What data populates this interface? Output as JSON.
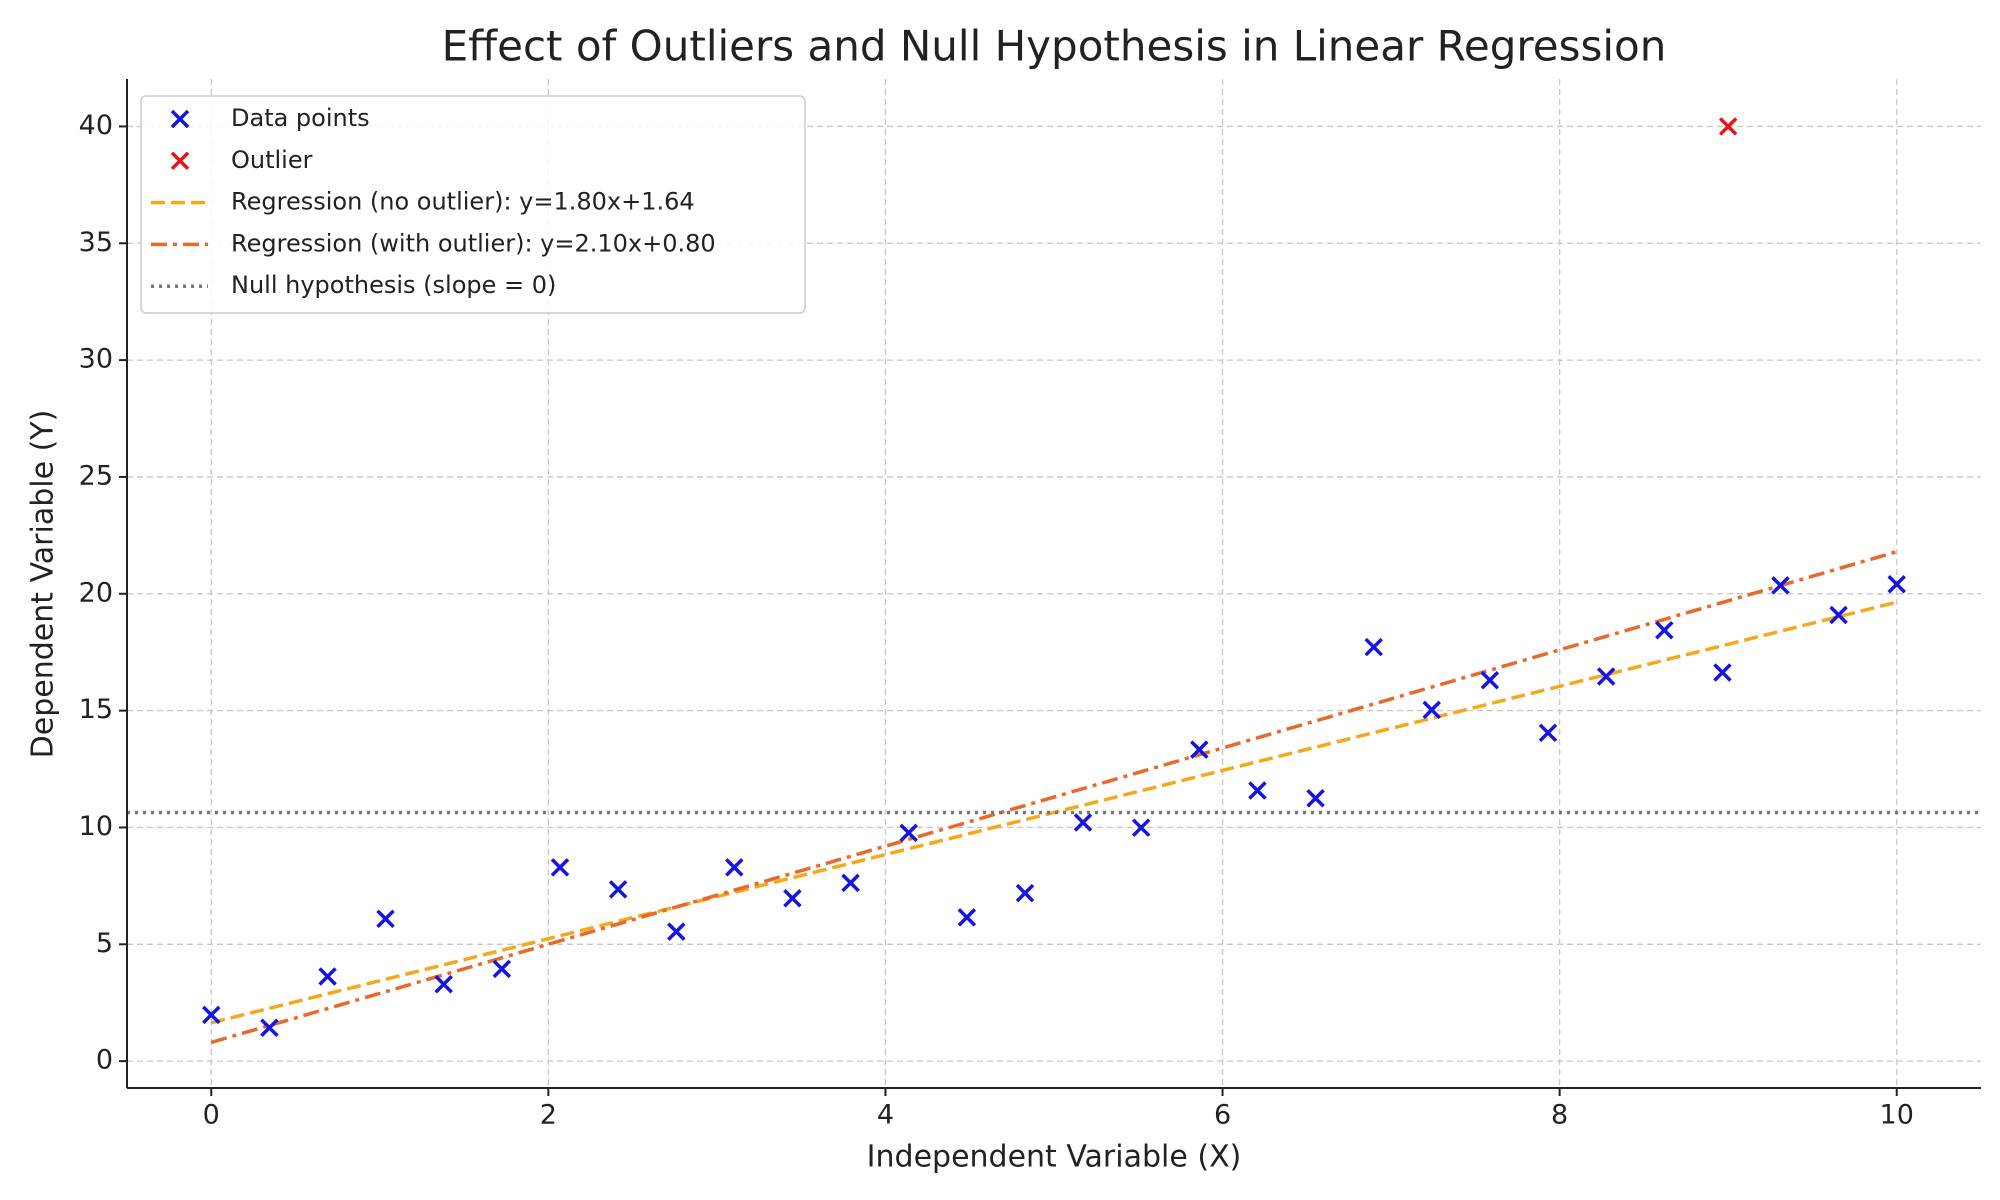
{
  "chart_data": {
    "type": "scatter",
    "title": "Effect of Outliers and Null Hypothesis in Linear Regression",
    "xlabel": "Independent Variable (X)",
    "ylabel": "Dependent Variable (Y)",
    "xlim": [
      -0.5,
      10.5
    ],
    "ylim": [
      -1.15,
      42.03
    ],
    "xticks": [
      0,
      2,
      4,
      6,
      8,
      10
    ],
    "yticks": [
      0,
      5,
      10,
      15,
      20,
      25,
      30,
      35,
      40
    ],
    "grid": true,
    "legend": "upper left",
    "series": [
      {
        "name": "Data points",
        "kind": "scatter",
        "marker": "x",
        "color": "#1414e6",
        "x": [
          0,
          0.345,
          0.69,
          1.034,
          1.379,
          1.724,
          2.069,
          2.414,
          2.759,
          3.103,
          3.448,
          3.793,
          4.138,
          4.483,
          4.828,
          5.172,
          5.517,
          5.862,
          6.207,
          6.552,
          6.897,
          7.241,
          7.586,
          7.931,
          8.276,
          8.621,
          8.966,
          9.31,
          9.655,
          10
        ],
        "values": [
          1.98,
          1.43,
          3.62,
          6.09,
          3.29,
          3.95,
          8.29,
          7.35,
          5.54,
          8.29,
          6.97,
          7.63,
          9.77,
          6.15,
          7.19,
          10.21,
          9.99,
          13.33,
          11.58,
          11.25,
          17.72,
          15.03,
          16.3,
          14.05,
          16.46,
          18.44,
          16.63,
          20.36,
          19.09,
          20.41
        ]
      },
      {
        "name": "Outlier",
        "kind": "scatter",
        "marker": "x",
        "color": "#e61414",
        "x": [
          9
        ],
        "values": [
          40
        ]
      },
      {
        "name": "Regression (no outlier): y=1.80x+1.64",
        "kind": "line",
        "dash": "dashed",
        "color": "#f5a81c",
        "x": [
          0,
          10
        ],
        "values": [
          1.64,
          19.64
        ]
      },
      {
        "name": "Regression (with outlier): y=2.10x+0.80",
        "kind": "line",
        "dash": "dashdot",
        "color": "#e8692a",
        "x": [
          0,
          10
        ],
        "values": [
          0.8,
          21.8
        ]
      },
      {
        "name": "Null hypothesis (slope = 0)",
        "kind": "line",
        "dash": "dotted",
        "color": "#777777",
        "x": [
          -0.5,
          10.5
        ],
        "values": [
          10.64,
          10.64
        ]
      }
    ]
  }
}
